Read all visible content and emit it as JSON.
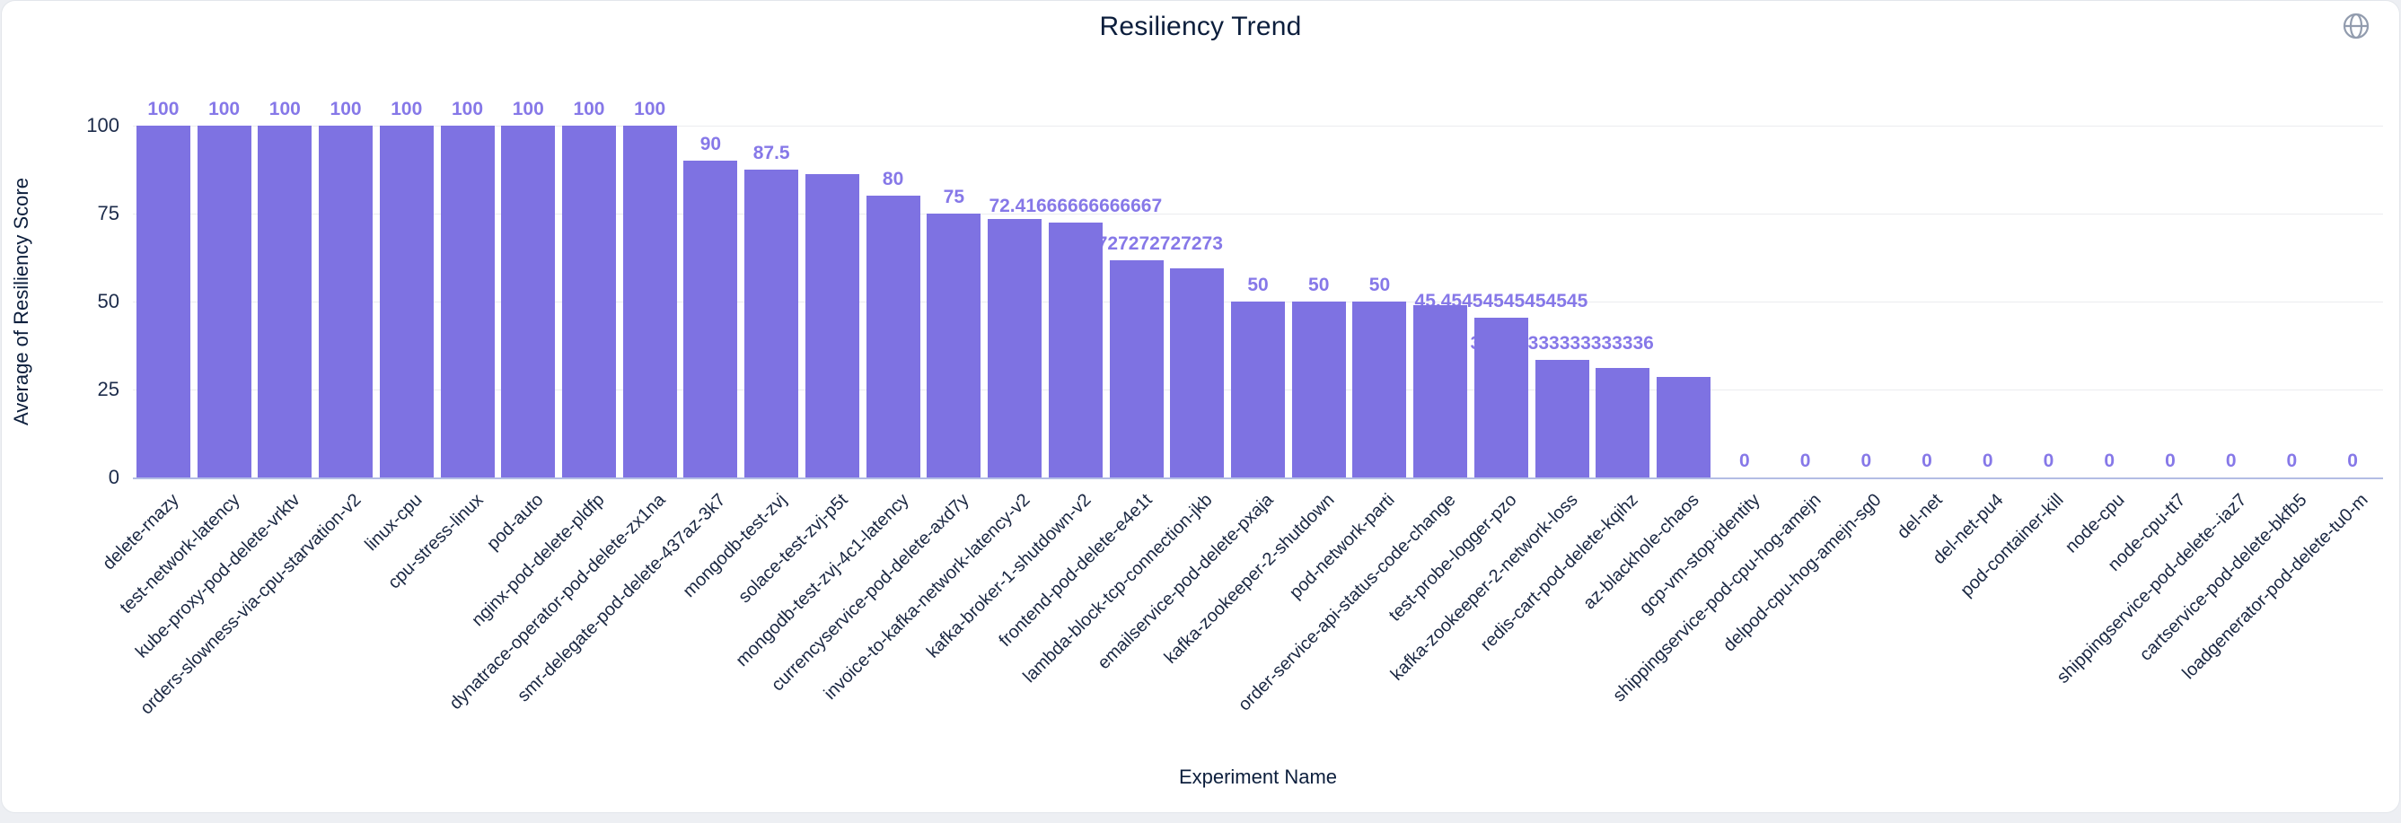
{
  "header": {
    "title": "Resiliency Trend"
  },
  "icons": {
    "globe_color": "#929cae"
  },
  "colors": {
    "bar": "#7E72E2",
    "value_label": "#8678E8",
    "axis_text": "#1c2b4a",
    "gridline": "#ebecef",
    "baseline": "#b3bde4",
    "card_bg": "#ffffff",
    "page_bg": "#edeff3"
  },
  "chart_data": {
    "type": "bar",
    "title": "Resiliency Trend",
    "xlabel": "Experiment Name",
    "ylabel": "Average of Resiliency Score",
    "ylim": [
      0,
      100
    ],
    "yticks": [
      0,
      25,
      50,
      75,
      100
    ],
    "grid": true,
    "legend": "none",
    "categories": [
      "delete-rnazy",
      "test-network-latency",
      "kube-proxy-pod-delete-vrktv",
      "orders-slowness-via-cpu-starvation-v2",
      "linux-cpu",
      "cpu-stress-linux",
      "pod-auto",
      "nginx-pod-delete-pldfp",
      "dynatrace-operator-pod-delete-zx1na",
      "smr-delegate-pod-delete-437az-3k7",
      "mongodb-test-zvj",
      "solace-test-zvj-p5t",
      "mongodb-test-zvj-4c1-latency",
      "currencyservice-pod-delete-axd7y",
      "invoice-to-kafka-network-latency-v2",
      "kafka-broker-1-shutdown-v2",
      "frontend-pod-delete-e4e1t",
      "lambda-block-tcp-connection-jkb",
      "emailservice-pod-delete-pxaja",
      "kafka-zookeeper-2-shutdown",
      "pod-network-parti",
      "order-service-api-status-code-change",
      "test-probe-logger-pzo",
      "kafka-zookeeper-2-network-loss",
      "redis-cart-pod-delete-kqihz",
      "az-blackhole-chaos",
      "gcp-vm-stop-identity",
      "shippingservice-pod-cpu-hog-amejn",
      "delpod-cpu-hog-amejn-sg0",
      "del-net",
      "del-net-pu4",
      "pod-container-kill",
      "node-cpu",
      "node-cpu-tt7",
      "shippingservice-pod-delete--iaz7",
      "cartservice-pod-delete-bkfb5",
      "loadgenerator-pod-delete-tu0-m"
    ],
    "values": [
      100,
      100,
      100,
      100,
      100,
      100,
      100,
      100,
      100,
      90,
      87.5,
      86.2,
      80,
      75,
      73.4,
      72.41666666666667,
      61.72727272727273,
      59.4,
      50,
      50,
      50,
      48.9,
      45.45454545454545,
      33.333333333333336,
      31.1,
      28.6,
      0,
      0,
      0,
      0,
      0,
      0,
      0,
      0,
      0,
      0,
      0
    ],
    "bar_labels": [
      "100",
      "100",
      "100",
      "100",
      "100",
      "100",
      "100",
      "100",
      "100",
      "90",
      "87.5",
      null,
      "80",
      "75",
      null,
      "72.41666666666667",
      "61.72727272727273",
      null,
      "50",
      "50",
      "50",
      null,
      "45.45454545454545",
      "33.333333333333336",
      null,
      null,
      "0",
      "0",
      "0",
      "0",
      "0",
      "0",
      "0",
      "0",
      "0",
      "0",
      "0"
    ]
  }
}
